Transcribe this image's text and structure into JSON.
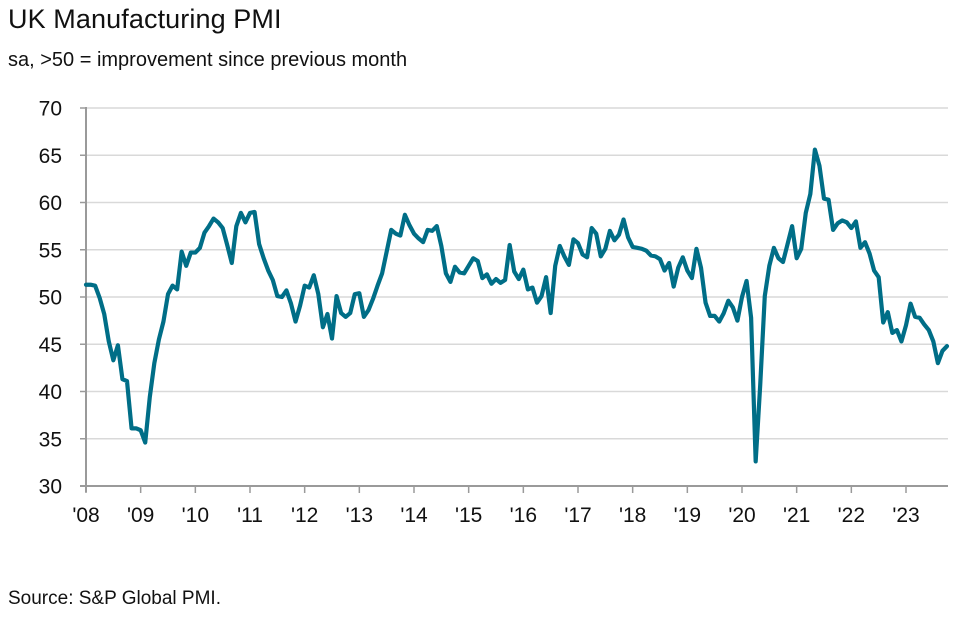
{
  "header": {
    "title": "UK Manufacturing PMI",
    "subtitle": "sa, >50 = improvement since previous month"
  },
  "footer": {
    "source": "Source: S&P Global PMI."
  },
  "colors": {
    "series": "#006E87",
    "grid": "#d9d9d9",
    "axis": "#9a9a9a",
    "text": "#111111"
  },
  "chart_data": {
    "type": "line",
    "title": "UK Manufacturing PMI",
    "subtitle": "sa, >50 = improvement since previous month",
    "xlabel": "",
    "ylabel": "",
    "ylim": [
      30,
      70
    ],
    "yticks": [
      30,
      35,
      40,
      45,
      50,
      55,
      60,
      65,
      70
    ],
    "ytick_labels": [
      "30",
      "35",
      "40",
      "45",
      "50",
      "55",
      "60",
      "65",
      "70"
    ],
    "xticks": [
      "'08",
      "'09",
      "'10",
      "'11",
      "'12",
      "'13",
      "'14",
      "'15",
      "'16",
      "'17",
      "'18",
      "'19",
      "'20",
      "'21",
      "'22",
      "'23"
    ],
    "x_start": "2008-01",
    "x_frequency": "monthly",
    "grid": "horizontal",
    "legend": "none",
    "source": "S&P Global PMI",
    "series": [
      {
        "name": "UK Manufacturing PMI",
        "values": [
          51.3,
          51.3,
          51.2,
          49.9,
          48.2,
          45.3,
          43.3,
          44.9,
          41.3,
          41.1,
          36.1,
          36.1,
          35.9,
          34.6,
          39.4,
          43.0,
          45.5,
          47.4,
          50.3,
          51.2,
          50.8,
          54.8,
          53.3,
          54.7,
          54.7,
          55.2,
          56.8,
          57.5,
          58.3,
          57.9,
          57.3,
          55.5,
          53.6,
          57.5,
          58.9,
          57.9,
          58.9,
          59.0,
          55.6,
          54.1,
          52.8,
          51.8,
          50.1,
          50.0,
          50.7,
          49.3,
          47.4,
          49.1,
          51.2,
          51.0,
          52.3,
          50.3,
          46.8,
          48.2,
          45.6,
          50.1,
          48.3,
          47.9,
          48.3,
          50.3,
          50.4,
          47.9,
          48.6,
          49.8,
          51.2,
          52.5,
          54.8,
          57.1,
          56.7,
          56.5,
          58.7,
          57.6,
          56.7,
          56.2,
          55.8,
          57.1,
          57.0,
          57.5,
          55.4,
          52.5,
          51.6,
          53.2,
          52.6,
          52.5,
          53.3,
          54.1,
          53.8,
          52.0,
          52.4,
          51.4,
          51.9,
          51.5,
          51.8,
          55.5,
          52.7,
          51.9,
          52.9,
          50.8,
          51.0,
          49.4,
          50.1,
          52.1,
          48.3,
          53.3,
          55.4,
          54.3,
          53.4,
          56.1,
          55.7,
          54.5,
          54.2,
          57.3,
          56.7,
          54.3,
          55.1,
          57.0,
          56.0,
          56.6,
          58.2,
          56.3,
          55.3,
          55.2,
          55.1,
          54.9,
          54.4,
          54.3,
          54.0,
          52.8,
          53.6,
          51.1,
          53.1,
          54.2,
          52.8,
          52.0,
          55.1,
          53.1,
          49.4,
          48.0,
          48.0,
          47.4,
          48.3,
          49.6,
          48.9,
          47.5,
          50.0,
          51.7,
          47.8,
          32.6,
          40.7,
          50.1,
          53.3,
          55.2,
          54.1,
          53.7,
          55.6,
          57.5,
          54.1,
          55.1,
          58.9,
          60.9,
          65.6,
          63.9,
          60.4,
          60.3,
          57.1,
          57.8,
          58.1,
          57.9,
          57.3,
          58.0,
          55.2,
          55.8,
          54.6,
          52.8,
          52.1,
          47.3,
          48.4,
          46.2,
          46.5,
          45.3,
          47.0,
          49.3,
          47.9,
          47.8,
          47.1,
          46.5,
          45.3,
          43.0,
          44.3,
          44.8
        ]
      }
    ]
  }
}
